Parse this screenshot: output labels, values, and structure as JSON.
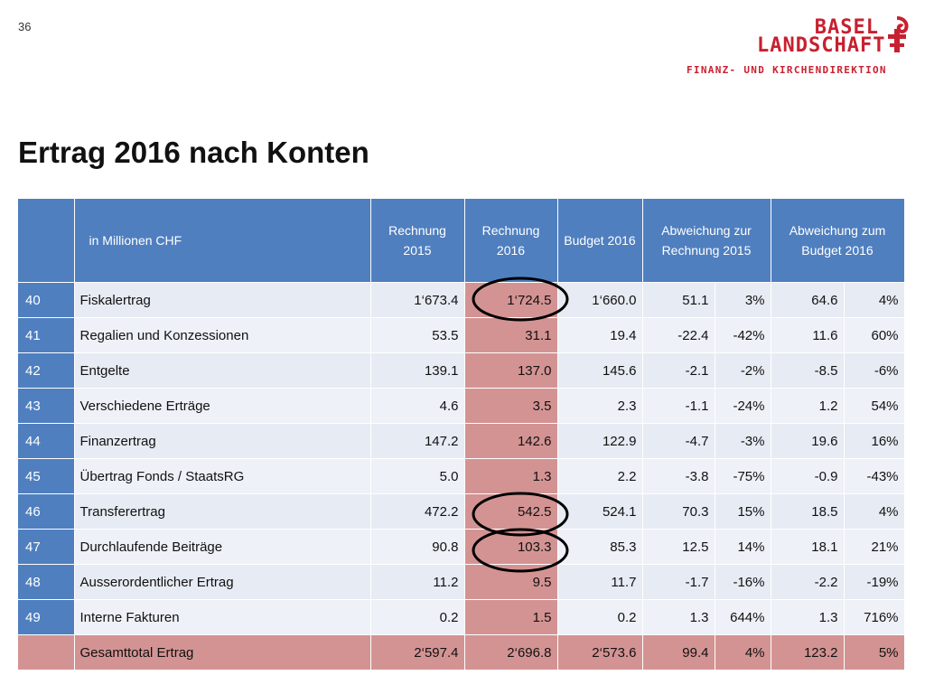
{
  "page_number": "36",
  "logo": {
    "line1": "BASEL",
    "line2": "LANDSCHAFT",
    "subtitle": "FINANZ- UND KIRCHENDIREKTION"
  },
  "title": "Ertrag 2016 nach Konten",
  "table": {
    "headers": {
      "code": "",
      "label": "in Millionen CHF",
      "rechnung_2015": "Rechnung 2015",
      "rechnung_2016": "Rechnung 2016",
      "budget_2016": "Budget 2016",
      "abw_rechnung_2015": "Abweichung zur Rechnung 2015",
      "abw_budget_2016": "Abweichung zum Budget 2016"
    },
    "rows": [
      {
        "code": "40",
        "name": "Fiskalertrag",
        "r2015": "1‘673.4",
        "r2016": "1‘724.5",
        "b2016": "1‘660.0",
        "abw_r": "51.1",
        "abw_r_pct": "3%",
        "abw_b": "64.6",
        "abw_b_pct": "4%"
      },
      {
        "code": "41",
        "name": "Regalien und Konzessionen",
        "r2015": "53.5",
        "r2016": "31.1",
        "b2016": "19.4",
        "abw_r": "-22.4",
        "abw_r_pct": "-42%",
        "abw_b": "11.6",
        "abw_b_pct": "60%"
      },
      {
        "code": "42",
        "name": "Entgelte",
        "r2015": "139.1",
        "r2016": "137.0",
        "b2016": "145.6",
        "abw_r": "-2.1",
        "abw_r_pct": "-2%",
        "abw_b": "-8.5",
        "abw_b_pct": "-6%"
      },
      {
        "code": "43",
        "name": "Verschiedene Erträge",
        "r2015": "4.6",
        "r2016": "3.5",
        "b2016": "2.3",
        "abw_r": "-1.1",
        "abw_r_pct": "-24%",
        "abw_b": "1.2",
        "abw_b_pct": "54%"
      },
      {
        "code": "44",
        "name": "Finanzertrag",
        "r2015": "147.2",
        "r2016": "142.6",
        "b2016": "122.9",
        "abw_r": "-4.7",
        "abw_r_pct": "-3%",
        "abw_b": "19.6",
        "abw_b_pct": "16%"
      },
      {
        "code": "45",
        "name": "Übertrag Fonds / StaatsRG",
        "r2015": "5.0",
        "r2016": "1.3",
        "b2016": "2.2",
        "abw_r": "-3.8",
        "abw_r_pct": "-75%",
        "abw_b": "-0.9",
        "abw_b_pct": "-43%"
      },
      {
        "code": "46",
        "name": "Transferertrag",
        "r2015": "472.2",
        "r2016": "542.5",
        "b2016": "524.1",
        "abw_r": "70.3",
        "abw_r_pct": "15%",
        "abw_b": "18.5",
        "abw_b_pct": "4%"
      },
      {
        "code": "47",
        "name": "Durchlaufende Beiträge",
        "r2015": "90.8",
        "r2016": "103.3",
        "b2016": "85.3",
        "abw_r": "12.5",
        "abw_r_pct": "14%",
        "abw_b": "18.1",
        "abw_b_pct": "21%"
      },
      {
        "code": "48",
        "name": "Ausserordentlicher Ertrag",
        "r2015": "11.2",
        "r2016": "9.5",
        "b2016": "11.7",
        "abw_r": "-1.7",
        "abw_r_pct": "-16%",
        "abw_b": "-2.2",
        "abw_b_pct": "-19%"
      },
      {
        "code": "49",
        "name": "Interne Fakturen",
        "r2015": "0.2",
        "r2016": "1.5",
        "b2016": "0.2",
        "abw_r": "1.3",
        "abw_r_pct": "644%",
        "abw_b": "1.3",
        "abw_b_pct": "716%"
      }
    ],
    "total": {
      "code": "",
      "name": "Gesamttotal Ertrag",
      "r2015": "2‘597.4",
      "r2016": "2‘696.8",
      "b2016": "2‘573.6",
      "abw_r": "99.4",
      "abw_r_pct": "4%",
      "abw_b": "123.2",
      "abw_b_pct": "5%"
    },
    "circled_codes": [
      "40",
      "46",
      "47"
    ]
  },
  "colors": {
    "header_blue": "#4f7fbf",
    "highlight_red": "#d49393",
    "brand_red": "#c8202f"
  }
}
